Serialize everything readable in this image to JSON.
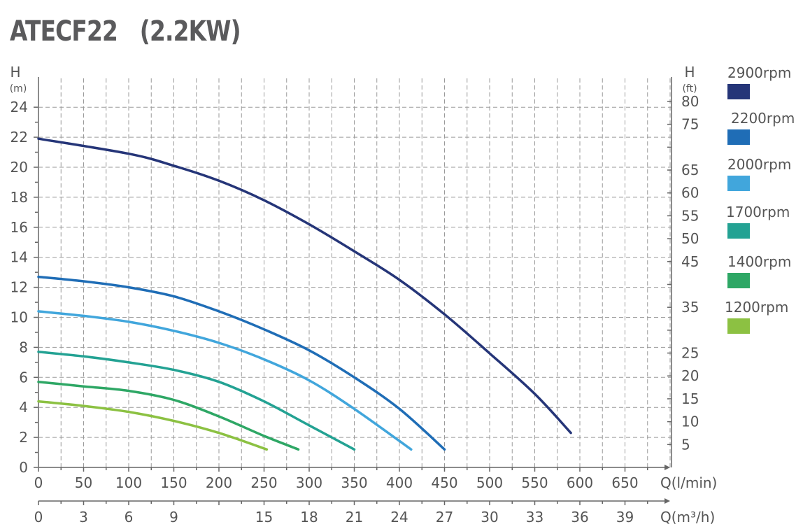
{
  "chart_data": {
    "type": "line",
    "title": "ATECF22   (2.2KW)",
    "left_axis": {
      "label": "H",
      "unit": "(m)",
      "range": [
        0,
        24
      ],
      "ticks": [
        0,
        2,
        4,
        6,
        8,
        10,
        12,
        14,
        16,
        18,
        20,
        22,
        24
      ]
    },
    "right_axis": {
      "label": "H",
      "unit": "(ft)",
      "ticks": [
        5,
        10,
        15,
        20,
        25,
        35,
        45,
        50,
        55,
        60,
        65,
        75,
        80
      ]
    },
    "x_axis": {
      "label": "Q(l/min)",
      "range": [
        0,
        700
      ],
      "ticks": [
        0,
        50,
        100,
        150,
        200,
        250,
        300,
        350,
        400,
        450,
        500,
        550,
        600,
        650
      ]
    },
    "x2_axis": {
      "label": "Q(m³/h)",
      "ticks": [
        0,
        3,
        6,
        9,
        15,
        18,
        21,
        24,
        27,
        30,
        33,
        36,
        39
      ]
    },
    "grid": true,
    "legend_position": "right",
    "series": [
      {
        "name": "2900rpm",
        "color": "#253578",
        "points": [
          [
            0,
            21.9
          ],
          [
            100,
            20.9
          ],
          [
            150,
            20.1
          ],
          [
            200,
            19.1
          ],
          [
            250,
            17.8
          ],
          [
            300,
            16.2
          ],
          [
            350,
            14.4
          ],
          [
            400,
            12.5
          ],
          [
            450,
            10.2
          ],
          [
            500,
            7.6
          ],
          [
            550,
            4.9
          ],
          [
            590,
            2.3
          ]
        ]
      },
      {
        "name": "2200rpm",
        "color": "#1f6db6",
        "points": [
          [
            0,
            12.7
          ],
          [
            50,
            12.4
          ],
          [
            100,
            12.0
          ],
          [
            150,
            11.4
          ],
          [
            200,
            10.4
          ],
          [
            250,
            9.2
          ],
          [
            300,
            7.8
          ],
          [
            350,
            6.0
          ],
          [
            400,
            3.9
          ],
          [
            450,
            1.2
          ]
        ]
      },
      {
        "name": "2000rpm",
        "color": "#41a6dc",
        "points": [
          [
            0,
            10.4
          ],
          [
            50,
            10.1
          ],
          [
            100,
            9.7
          ],
          [
            150,
            9.1
          ],
          [
            200,
            8.3
          ],
          [
            250,
            7.2
          ],
          [
            300,
            5.8
          ],
          [
            350,
            3.9
          ],
          [
            413,
            1.2
          ]
        ]
      },
      {
        "name": "1700rpm",
        "color": "#23a293",
        "points": [
          [
            0,
            7.7
          ],
          [
            50,
            7.4
          ],
          [
            100,
            7.0
          ],
          [
            150,
            6.5
          ],
          [
            200,
            5.7
          ],
          [
            250,
            4.4
          ],
          [
            300,
            2.8
          ],
          [
            350,
            1.2
          ]
        ]
      },
      {
        "name": "1400rpm",
        "color": "#2ea765",
        "points": [
          [
            0,
            5.7
          ],
          [
            50,
            5.4
          ],
          [
            100,
            5.1
          ],
          [
            150,
            4.5
          ],
          [
            200,
            3.4
          ],
          [
            250,
            2.1
          ],
          [
            288,
            1.2
          ]
        ]
      },
      {
        "name": "1200rpm",
        "color": "#8cc142",
        "points": [
          [
            0,
            4.4
          ],
          [
            50,
            4.1
          ],
          [
            100,
            3.7
          ],
          [
            150,
            3.1
          ],
          [
            200,
            2.3
          ],
          [
            253,
            1.2
          ]
        ]
      }
    ]
  }
}
